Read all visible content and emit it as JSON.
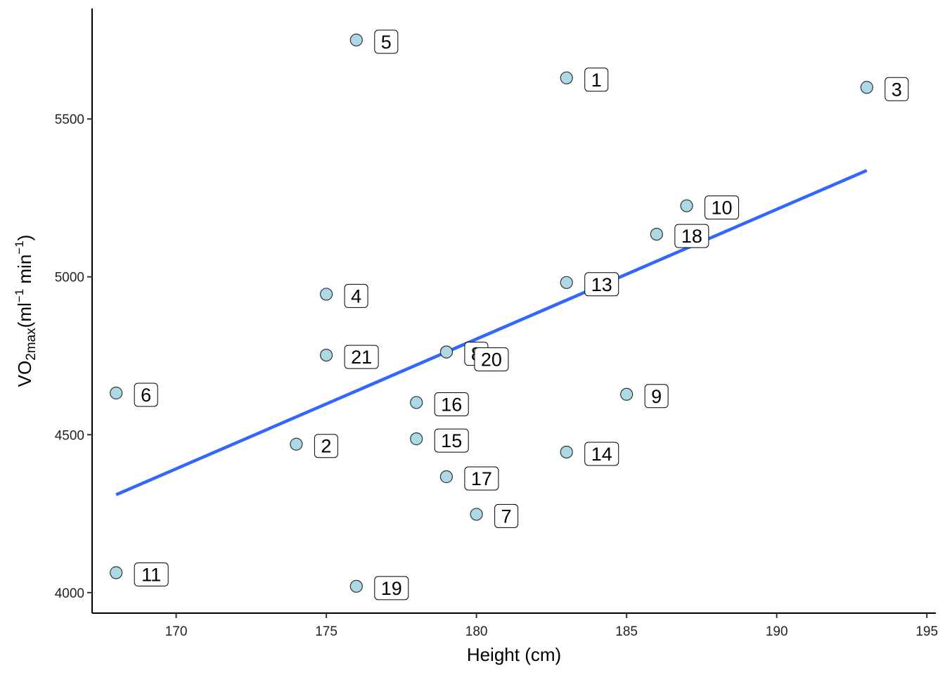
{
  "chart_data": {
    "type": "scatter",
    "title": "",
    "xlabel": "Height (cm)",
    "ylabel": {
      "base": "VO",
      "sub": "2max",
      "units_open": "(ml",
      "sup1": "−1",
      "mid": " min",
      "sup2": "−1",
      "units_close": ")"
    },
    "xlim": [
      167.2,
      195.3
    ],
    "ylim": [
      3935,
      5850
    ],
    "x_ticks": [
      170,
      175,
      180,
      185,
      190,
      195
    ],
    "y_ticks": [
      4000,
      4500,
      5000,
      5500
    ],
    "x_tick_labels": [
      "170",
      "175",
      "180",
      "185",
      "190",
      "195"
    ],
    "y_tick_labels": [
      "4000",
      "4500",
      "5000",
      "5500"
    ],
    "grid": false,
    "point_color": "#add8e6",
    "point_stroke": "#333333",
    "trend_color": "#3366ff",
    "trend_line": {
      "x": [
        168,
        193
      ],
      "y": [
        4310,
        5337
      ]
    },
    "points": [
      {
        "label": "1",
        "x": 183,
        "y": 5630
      },
      {
        "label": "2",
        "x": 174,
        "y": 4470
      },
      {
        "label": "3",
        "x": 193,
        "y": 5600
      },
      {
        "label": "4",
        "x": 175,
        "y": 4945
      },
      {
        "label": "5",
        "x": 176,
        "y": 5750
      },
      {
        "label": "6",
        "x": 168,
        "y": 4632
      },
      {
        "label": "7",
        "x": 180,
        "y": 4248
      },
      {
        "label": "8",
        "x": 179,
        "y": 4762
      },
      {
        "label": "9",
        "x": 185,
        "y": 4628
      },
      {
        "label": "10",
        "x": 187,
        "y": 5225
      },
      {
        "label": "11",
        "x": 168,
        "y": 4063
      },
      {
        "label": "13",
        "x": 183,
        "y": 4982
      },
      {
        "label": "14",
        "x": 183,
        "y": 4445
      },
      {
        "label": "15",
        "x": 178,
        "y": 4487
      },
      {
        "label": "16",
        "x": 178,
        "y": 4602
      },
      {
        "label": "17",
        "x": 179,
        "y": 4367
      },
      {
        "label": "18",
        "x": 186,
        "y": 5135
      },
      {
        "label": "19",
        "x": 176,
        "y": 4020
      },
      {
        "label": "20",
        "x": 179,
        "y": 4762
      },
      {
        "label": "21",
        "x": 175,
        "y": 4752
      }
    ]
  }
}
